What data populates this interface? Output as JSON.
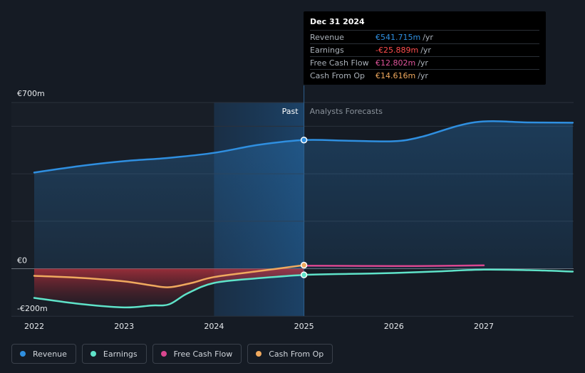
{
  "chart_data": {
    "type": "line",
    "x_range": [
      2021.8,
      2027.99
    ],
    "y_range": [
      -200,
      700
    ],
    "divider_x": 2025.0,
    "highlight_start_x": 2024.0,
    "x_ticks": [
      {
        "value": 2022,
        "label": "2022"
      },
      {
        "value": 2023,
        "label": "2023"
      },
      {
        "value": 2024,
        "label": "2024"
      },
      {
        "value": 2025,
        "label": "2025"
      },
      {
        "value": 2026,
        "label": "2026"
      },
      {
        "value": 2027,
        "label": "2027"
      }
    ],
    "y_labels": [
      {
        "value": 700,
        "label": "€700m"
      },
      {
        "value": 0,
        "label": "€0"
      },
      {
        "value": -200,
        "label": "-€200m"
      }
    ],
    "gridlines": [
      700,
      600,
      400,
      200,
      0,
      -200
    ],
    "past_label": "Past",
    "forecast_label": "Analysts Forecasts",
    "series": [
      {
        "name": "Revenue",
        "color": "#2f8fe0",
        "fill": true,
        "points": [
          [
            2022.0,
            405
          ],
          [
            2022.5,
            432
          ],
          [
            2023.0,
            453
          ],
          [
            2023.5,
            467
          ],
          [
            2024.0,
            488
          ],
          [
            2024.5,
            522
          ],
          [
            2025.0,
            542
          ],
          [
            2025.5,
            539
          ],
          [
            2026.0,
            537
          ],
          [
            2026.3,
            555
          ],
          [
            2026.9,
            617
          ],
          [
            2027.5,
            616
          ],
          [
            2027.99,
            615
          ]
        ]
      },
      {
        "name": "Earnings",
        "color": "#5fe3c9",
        "fill": false,
        "points": [
          [
            2022.0,
            -123
          ],
          [
            2022.5,
            -148
          ],
          [
            2023.0,
            -163
          ],
          [
            2023.3,
            -155
          ],
          [
            2023.5,
            -150
          ],
          [
            2023.7,
            -105
          ],
          [
            2024.0,
            -60
          ],
          [
            2024.5,
            -40
          ],
          [
            2025.0,
            -26
          ],
          [
            2025.5,
            -22
          ],
          [
            2026.0,
            -18
          ],
          [
            2026.5,
            -11
          ],
          [
            2027.0,
            -4
          ],
          [
            2027.5,
            -6
          ],
          [
            2027.99,
            -12
          ]
        ]
      },
      {
        "name": "Free Cash Flow",
        "color": "#d9468f",
        "fill": false,
        "points": [
          [
            2025.0,
            13
          ],
          [
            2025.5,
            12
          ],
          [
            2026.0,
            11
          ],
          [
            2026.5,
            12
          ],
          [
            2027.0,
            14
          ]
        ]
      },
      {
        "name": "Cash From Op",
        "color": "#f0a95e",
        "fill": false,
        "points": [
          [
            2022.0,
            -30
          ],
          [
            2022.5,
            -38
          ],
          [
            2023.0,
            -53
          ],
          [
            2023.3,
            -70
          ],
          [
            2023.5,
            -78
          ],
          [
            2023.75,
            -60
          ],
          [
            2024.0,
            -35
          ],
          [
            2024.5,
            -10
          ],
          [
            2025.0,
            15
          ]
        ]
      }
    ],
    "markers": [
      {
        "series": "Revenue",
        "x": 2025.0,
        "y": 542
      },
      {
        "series": "Cash From Op",
        "x": 2025.0,
        "y": 15
      },
      {
        "series": "Earnings",
        "x": 2025.0,
        "y": -26
      }
    ]
  },
  "tooltip": {
    "date": "Dec 31 2024",
    "rows": [
      {
        "label": "Revenue",
        "value": "€541.715m",
        "unit": "/yr",
        "color": "#2f8fe0"
      },
      {
        "label": "Earnings",
        "value": "-€25.889m",
        "unit": "/yr",
        "color": "#ff4d4d"
      },
      {
        "label": "Free Cash Flow",
        "value": "€12.802m",
        "unit": "/yr",
        "color": "#e0559c"
      },
      {
        "label": "Cash From Op",
        "value": "€14.616m",
        "unit": "/yr",
        "color": "#f0a95e"
      }
    ]
  },
  "legend": [
    {
      "label": "Revenue",
      "color": "#2f8fe0"
    },
    {
      "label": "Earnings",
      "color": "#5fe3c9"
    },
    {
      "label": "Free Cash Flow",
      "color": "#d9468f"
    },
    {
      "label": "Cash From Op",
      "color": "#f0a95e"
    }
  ]
}
